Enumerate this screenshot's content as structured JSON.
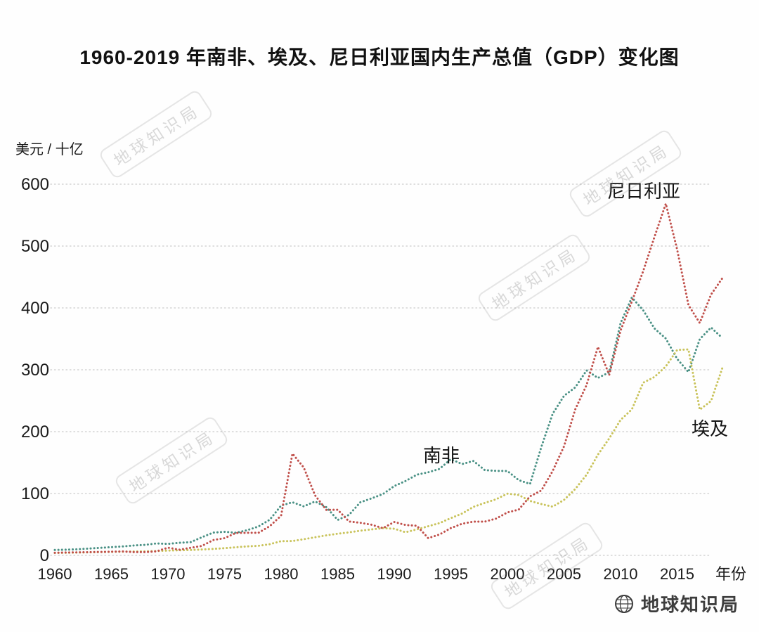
{
  "title": "1960-2019 年南非、埃及、尼日利亚国内生产总值（GDP）变化图",
  "y_axis": {
    "unit_label": "美元 / 十亿",
    "ticks": [
      600,
      500,
      400,
      300,
      200,
      100,
      0
    ]
  },
  "x_axis": {
    "ticks": [
      1960,
      1965,
      1970,
      1975,
      1980,
      1985,
      1990,
      1995,
      2000,
      2005,
      2010,
      2015
    ],
    "unit_label": "年份"
  },
  "series_labels": {
    "nigeria": "尼日利亚",
    "south_africa": "南非",
    "egypt": "埃及"
  },
  "watermark": {
    "text": "地球知识局"
  },
  "brand": {
    "name": "地球知识局"
  },
  "colors": {
    "nigeria": "#c04f4a",
    "south_africa": "#4a9185",
    "egypt": "#c9c35b",
    "grid": "#cbcbcb",
    "text": "#1a1a1a"
  },
  "chart_data": {
    "type": "line",
    "title": "1960-2019 年南非、埃及、尼日利亚国内生产总值（GDP）变化图",
    "xlabel": "年份",
    "ylabel": "美元 / 十亿",
    "ylim": [
      0,
      600
    ],
    "grid": true,
    "line_style": "dotted",
    "legend_position": "inline-labels",
    "x": [
      1960,
      1961,
      1962,
      1963,
      1964,
      1965,
      1966,
      1967,
      1968,
      1969,
      1970,
      1971,
      1972,
      1973,
      1974,
      1975,
      1976,
      1977,
      1978,
      1979,
      1980,
      1981,
      1982,
      1983,
      1984,
      1985,
      1986,
      1987,
      1988,
      1989,
      1990,
      1991,
      1992,
      1993,
      1994,
      1995,
      1996,
      1997,
      1998,
      1999,
      2000,
      2001,
      2002,
      2003,
      2004,
      2005,
      2006,
      2007,
      2008,
      2009,
      2010,
      2011,
      2012,
      2013,
      2014,
      2015,
      2016,
      2017,
      2018,
      2019
    ],
    "series": [
      {
        "name": "南非",
        "color": "#4a9185",
        "values": [
          8.7,
          9.2,
          9.9,
          11.0,
          12.2,
          13.3,
          14.4,
          16.0,
          17.1,
          19.3,
          18.5,
          20.3,
          21.4,
          29.3,
          36.8,
          38.1,
          36.6,
          40.7,
          46.7,
          57.7,
          80.5,
          85.9,
          79.2,
          87.2,
          77.8,
          57.3,
          65.4,
          85.8,
          92.2,
          99.1,
          112.0,
          120.2,
          130.5,
          134.3,
          139.8,
          155.5,
          147.6,
          152.6,
          137.8,
          136.6,
          136.4,
          121.6,
          115.5,
          175.3,
          228.9,
          257.8,
          271.6,
          299.0,
          286.8,
          295.9,
          375.3,
          416.9,
          396.3,
          366.8,
          350.6,
          317.6,
          296.4,
          349.4,
          368.3,
          351.4
        ]
      },
      {
        "name": "埃及",
        "color": "#c9c35b",
        "values": [
          4.0,
          4.2,
          4.5,
          4.9,
          5.3,
          5.7,
          6.0,
          6.2,
          6.5,
          7.0,
          7.7,
          8.2,
          8.8,
          9.6,
          10.5,
          11.6,
          13.1,
          14.6,
          15.4,
          18.1,
          22.9,
          23.2,
          26.1,
          29.3,
          32.4,
          35.0,
          37.2,
          39.9,
          42.0,
          44.0,
          43.1,
          37.4,
          42.0,
          47.1,
          52.2,
          60.2,
          67.6,
          78.4,
          84.8,
          90.7,
          99.8,
          97.6,
          87.9,
          82.9,
          78.8,
          89.6,
          107.4,
          130.4,
          162.8,
          189.1,
          218.9,
          236.0,
          279.1,
          288.4,
          305.5,
          332.1,
          332.9,
          235.4,
          249.7,
          303.1
        ]
      },
      {
        "name": "尼日利亚",
        "color": "#c04f4a",
        "values": [
          4.2,
          4.7,
          4.9,
          5.2,
          5.6,
          5.9,
          6.4,
          5.2,
          5.2,
          6.6,
          12.5,
          9.2,
          12.3,
          15.2,
          24.8,
          27.8,
          36.3,
          36.5,
          36.5,
          47.3,
          64.2,
          164.5,
          142.0,
          97.1,
          73.5,
          73.7,
          54.8,
          52.7,
          49.6,
          44.0,
          54.0,
          49.1,
          47.8,
          27.8,
          33.8,
          44.1,
          51.1,
          54.5,
          54.6,
          59.4,
          69.4,
          74.0,
          95.4,
          104.9,
          136.4,
          176.1,
          236.1,
          275.6,
          337.0,
          291.9,
          363.4,
          410.3,
          459.4,
          514.9,
          568.5,
          494.6,
          404.7,
          375.7,
          421.7,
          448.1
        ]
      }
    ]
  }
}
